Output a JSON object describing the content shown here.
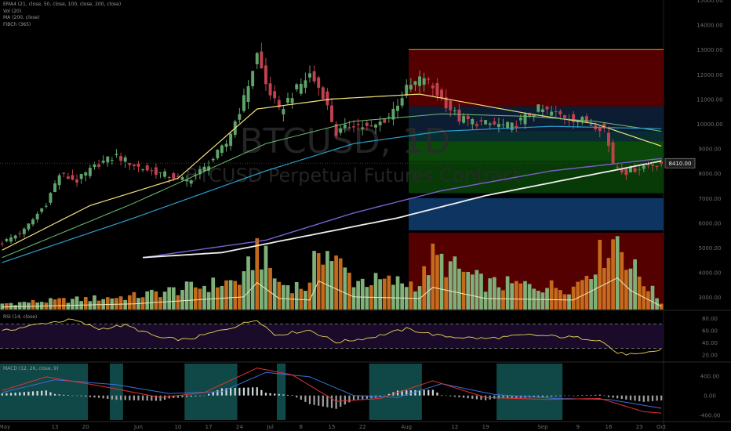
{
  "legend": {
    "indicators": [
      "EMA4 (21, close, 50, close, 100, close, 200, close)",
      "Vol (20)",
      "MA (200, close)",
      "FIBCh (365)"
    ]
  },
  "watermark": {
    "symbol": "BTCUSD, 1D",
    "description": "BTCUSD Perpetual Futures Contract"
  },
  "price_label": "8410.00",
  "rsi_title": "RSI (14, close)",
  "macd_title": "MACD (12, 26, close, 9)",
  "colors": {
    "up": "#5fa36a",
    "down": "#c0424e",
    "vol_up": "#7fb07a",
    "vol_down": "#c46a1c",
    "ema21": "#f2e27a",
    "ema50": "#6fbf73",
    "ema100": "#2a9fc9",
    "ema200": "#7d5fd1",
    "ma200": "#f0f0f0"
  },
  "chart_data": [
    {
      "type": "candlestick",
      "title": "BTCUSD, 1D",
      "ylim": [
        2500,
        15000
      ],
      "y_ticks": [
        "15000.00",
        "14000.00",
        "13000.00",
        "12000.00",
        "11000.00",
        "10000.00",
        "9000.00",
        "8000.00",
        "7000.00",
        "6000.00",
        "5000.00",
        "4000.00",
        "3000.00"
      ],
      "x_ticks": [
        "May",
        "13",
        "20",
        "Jun",
        "10",
        "17",
        "24",
        "Jul",
        "8",
        "15",
        "22",
        "Aug",
        "12",
        "19",
        "Sep",
        "9",
        "16",
        "23",
        "Oct"
      ],
      "last_price": 8410,
      "close_path": [
        {
          "d": 0,
          "v": 5200
        },
        {
          "d": 5,
          "v": 5700
        },
        {
          "d": 10,
          "v": 6800
        },
        {
          "d": 13,
          "v": 7950
        },
        {
          "d": 17,
          "v": 7700
        },
        {
          "d": 22,
          "v": 8400
        },
        {
          "d": 26,
          "v": 8700
        },
        {
          "d": 31,
          "v": 8250
        },
        {
          "d": 36,
          "v": 8000
        },
        {
          "d": 42,
          "v": 7700
        },
        {
          "d": 46,
          "v": 8200
        },
        {
          "d": 51,
          "v": 9200
        },
        {
          "d": 55,
          "v": 11000
        },
        {
          "d": 58,
          "v": 12800
        },
        {
          "d": 60,
          "v": 11600
        },
        {
          "d": 63,
          "v": 10500
        },
        {
          "d": 66,
          "v": 11200
        },
        {
          "d": 70,
          "v": 12000
        },
        {
          "d": 73,
          "v": 11200
        },
        {
          "d": 76,
          "v": 9600
        },
        {
          "d": 80,
          "v": 10000
        },
        {
          "d": 84,
          "v": 9800
        },
        {
          "d": 88,
          "v": 10300
        },
        {
          "d": 92,
          "v": 11400
        },
        {
          "d": 96,
          "v": 11900
        },
        {
          "d": 100,
          "v": 11000
        },
        {
          "d": 104,
          "v": 10200
        },
        {
          "d": 110,
          "v": 10000
        },
        {
          "d": 116,
          "v": 9900
        },
        {
          "d": 122,
          "v": 10600
        },
        {
          "d": 128,
          "v": 10300
        },
        {
          "d": 133,
          "v": 10100
        },
        {
          "d": 137,
          "v": 9800
        },
        {
          "d": 139,
          "v": 8400
        },
        {
          "d": 142,
          "v": 8050
        },
        {
          "d": 146,
          "v": 8300
        },
        {
          "d": 150,
          "v": 8410
        }
      ],
      "series": [
        {
          "name": "EMA 21",
          "points": [
            {
              "d": 0,
              "v": 4900
            },
            {
              "d": 20,
              "v": 6700
            },
            {
              "d": 40,
              "v": 7800
            },
            {
              "d": 58,
              "v": 10600
            },
            {
              "d": 75,
              "v": 11000
            },
            {
              "d": 95,
              "v": 11200
            },
            {
              "d": 120,
              "v": 10400
            },
            {
              "d": 135,
              "v": 10000
            },
            {
              "d": 150,
              "v": 9100
            }
          ]
        },
        {
          "name": "EMA 50",
          "points": [
            {
              "d": 0,
              "v": 4600
            },
            {
              "d": 30,
              "v": 6800
            },
            {
              "d": 60,
              "v": 9200
            },
            {
              "d": 80,
              "v": 10100
            },
            {
              "d": 100,
              "v": 10400
            },
            {
              "d": 120,
              "v": 10300
            },
            {
              "d": 135,
              "v": 10100
            },
            {
              "d": 150,
              "v": 9700
            }
          ]
        },
        {
          "name": "EMA 100",
          "points": [
            {
              "d": 0,
              "v": 4400
            },
            {
              "d": 30,
              "v": 6200
            },
            {
              "d": 60,
              "v": 8100
            },
            {
              "d": 80,
              "v": 9200
            },
            {
              "d": 100,
              "v": 9700
            },
            {
              "d": 125,
              "v": 9900
            },
            {
              "d": 150,
              "v": 9800
            }
          ]
        },
        {
          "name": "EMA 200",
          "points": [
            {
              "d": 32,
              "v": 4600
            },
            {
              "d": 60,
              "v": 5300
            },
            {
              "d": 80,
              "v": 6400
            },
            {
              "d": 100,
              "v": 7300
            },
            {
              "d": 125,
              "v": 8100
            },
            {
              "d": 150,
              "v": 8600
            }
          ]
        },
        {
          "name": "MA 200",
          "points": [
            {
              "d": 32,
              "v": 4600
            },
            {
              "d": 50,
              "v": 4800
            },
            {
              "d": 70,
              "v": 5500
            },
            {
              "d": 90,
              "v": 6200
            },
            {
              "d": 110,
              "v": 7100
            },
            {
              "d": 130,
              "v": 7800
            },
            {
              "d": 150,
              "v": 8500
            }
          ]
        }
      ],
      "fib_zones": [
        {
          "from": 13000,
          "to": 10700,
          "color": "#5a0000"
        },
        {
          "from": 10700,
          "to": 9700,
          "color": "#0d1d36"
        },
        {
          "from": 9700,
          "to": 9300,
          "color": "#0a2e33"
        },
        {
          "from": 9300,
          "to": 8500,
          "color": "#0b4d0b"
        },
        {
          "from": 8500,
          "to": 7200,
          "color": "#073d07"
        },
        {
          "from": 7000,
          "to": 5700,
          "color": "#0f3766"
        },
        {
          "from": 5600,
          "to": 2500,
          "color": "#5a0000"
        }
      ]
    },
    {
      "type": "bar",
      "title": "Volume",
      "vol_path": [
        {
          "d": 0,
          "v": 0.08
        },
        {
          "d": 30,
          "v": 0.18
        },
        {
          "d": 55,
          "v": 0.4
        },
        {
          "d": 58,
          "v": 0.85
        },
        {
          "d": 63,
          "v": 0.35
        },
        {
          "d": 70,
          "v": 0.3
        },
        {
          "d": 72,
          "v": 0.9
        },
        {
          "d": 80,
          "v": 0.4
        },
        {
          "d": 95,
          "v": 0.35
        },
        {
          "d": 98,
          "v": 0.7
        },
        {
          "d": 110,
          "v": 0.35
        },
        {
          "d": 130,
          "v": 0.3
        },
        {
          "d": 140,
          "v": 1.0
        },
        {
          "d": 143,
          "v": 0.6
        },
        {
          "d": 150,
          "v": 0.1
        }
      ]
    },
    {
      "type": "line",
      "title": "RSI (14, close)",
      "y_ticks": [
        "80.00",
        "60.00",
        "40.00",
        "20.00"
      ],
      "ylim": [
        10,
        90
      ],
      "bands": [
        70,
        30
      ],
      "points": [
        {
          "d": 0,
          "v": 58
        },
        {
          "d": 10,
          "v": 72
        },
        {
          "d": 16,
          "v": 77
        },
        {
          "d": 22,
          "v": 62
        },
        {
          "d": 28,
          "v": 68
        },
        {
          "d": 36,
          "v": 47
        },
        {
          "d": 42,
          "v": 44
        },
        {
          "d": 52,
          "v": 64
        },
        {
          "d": 58,
          "v": 78
        },
        {
          "d": 62,
          "v": 52
        },
        {
          "d": 70,
          "v": 60
        },
        {
          "d": 76,
          "v": 40
        },
        {
          "d": 84,
          "v": 48
        },
        {
          "d": 92,
          "v": 62
        },
        {
          "d": 100,
          "v": 50
        },
        {
          "d": 110,
          "v": 46
        },
        {
          "d": 120,
          "v": 52
        },
        {
          "d": 130,
          "v": 48
        },
        {
          "d": 136,
          "v": 44
        },
        {
          "d": 140,
          "v": 22
        },
        {
          "d": 145,
          "v": 19
        },
        {
          "d": 150,
          "v": 28
        }
      ]
    },
    {
      "type": "line",
      "title": "MACD (12, 26, close, 9)",
      "y_ticks": [
        "400.00",
        "0.00",
        "-400.00"
      ],
      "ylim": [
        -500,
        650
      ],
      "macd_points": [
        {
          "d": 0,
          "v": 100
        },
        {
          "d": 10,
          "v": 380
        },
        {
          "d": 22,
          "v": 200
        },
        {
          "d": 36,
          "v": -40
        },
        {
          "d": 46,
          "v": 60
        },
        {
          "d": 58,
          "v": 560
        },
        {
          "d": 66,
          "v": 420
        },
        {
          "d": 76,
          "v": -120
        },
        {
          "d": 86,
          "v": -60
        },
        {
          "d": 98,
          "v": 300
        },
        {
          "d": 110,
          "v": -40
        },
        {
          "d": 124,
          "v": -80
        },
        {
          "d": 136,
          "v": -60
        },
        {
          "d": 146,
          "v": -330
        },
        {
          "d": 150,
          "v": -360
        }
      ],
      "signal_points": [
        {
          "d": 0,
          "v": 60
        },
        {
          "d": 12,
          "v": 320
        },
        {
          "d": 26,
          "v": 220
        },
        {
          "d": 38,
          "v": 40
        },
        {
          "d": 50,
          "v": 80
        },
        {
          "d": 60,
          "v": 470
        },
        {
          "d": 70,
          "v": 380
        },
        {
          "d": 80,
          "v": 0
        },
        {
          "d": 90,
          "v": -40
        },
        {
          "d": 100,
          "v": 240
        },
        {
          "d": 112,
          "v": 20
        },
        {
          "d": 126,
          "v": -60
        },
        {
          "d": 138,
          "v": -80
        },
        {
          "d": 150,
          "v": -260
        }
      ]
    }
  ]
}
